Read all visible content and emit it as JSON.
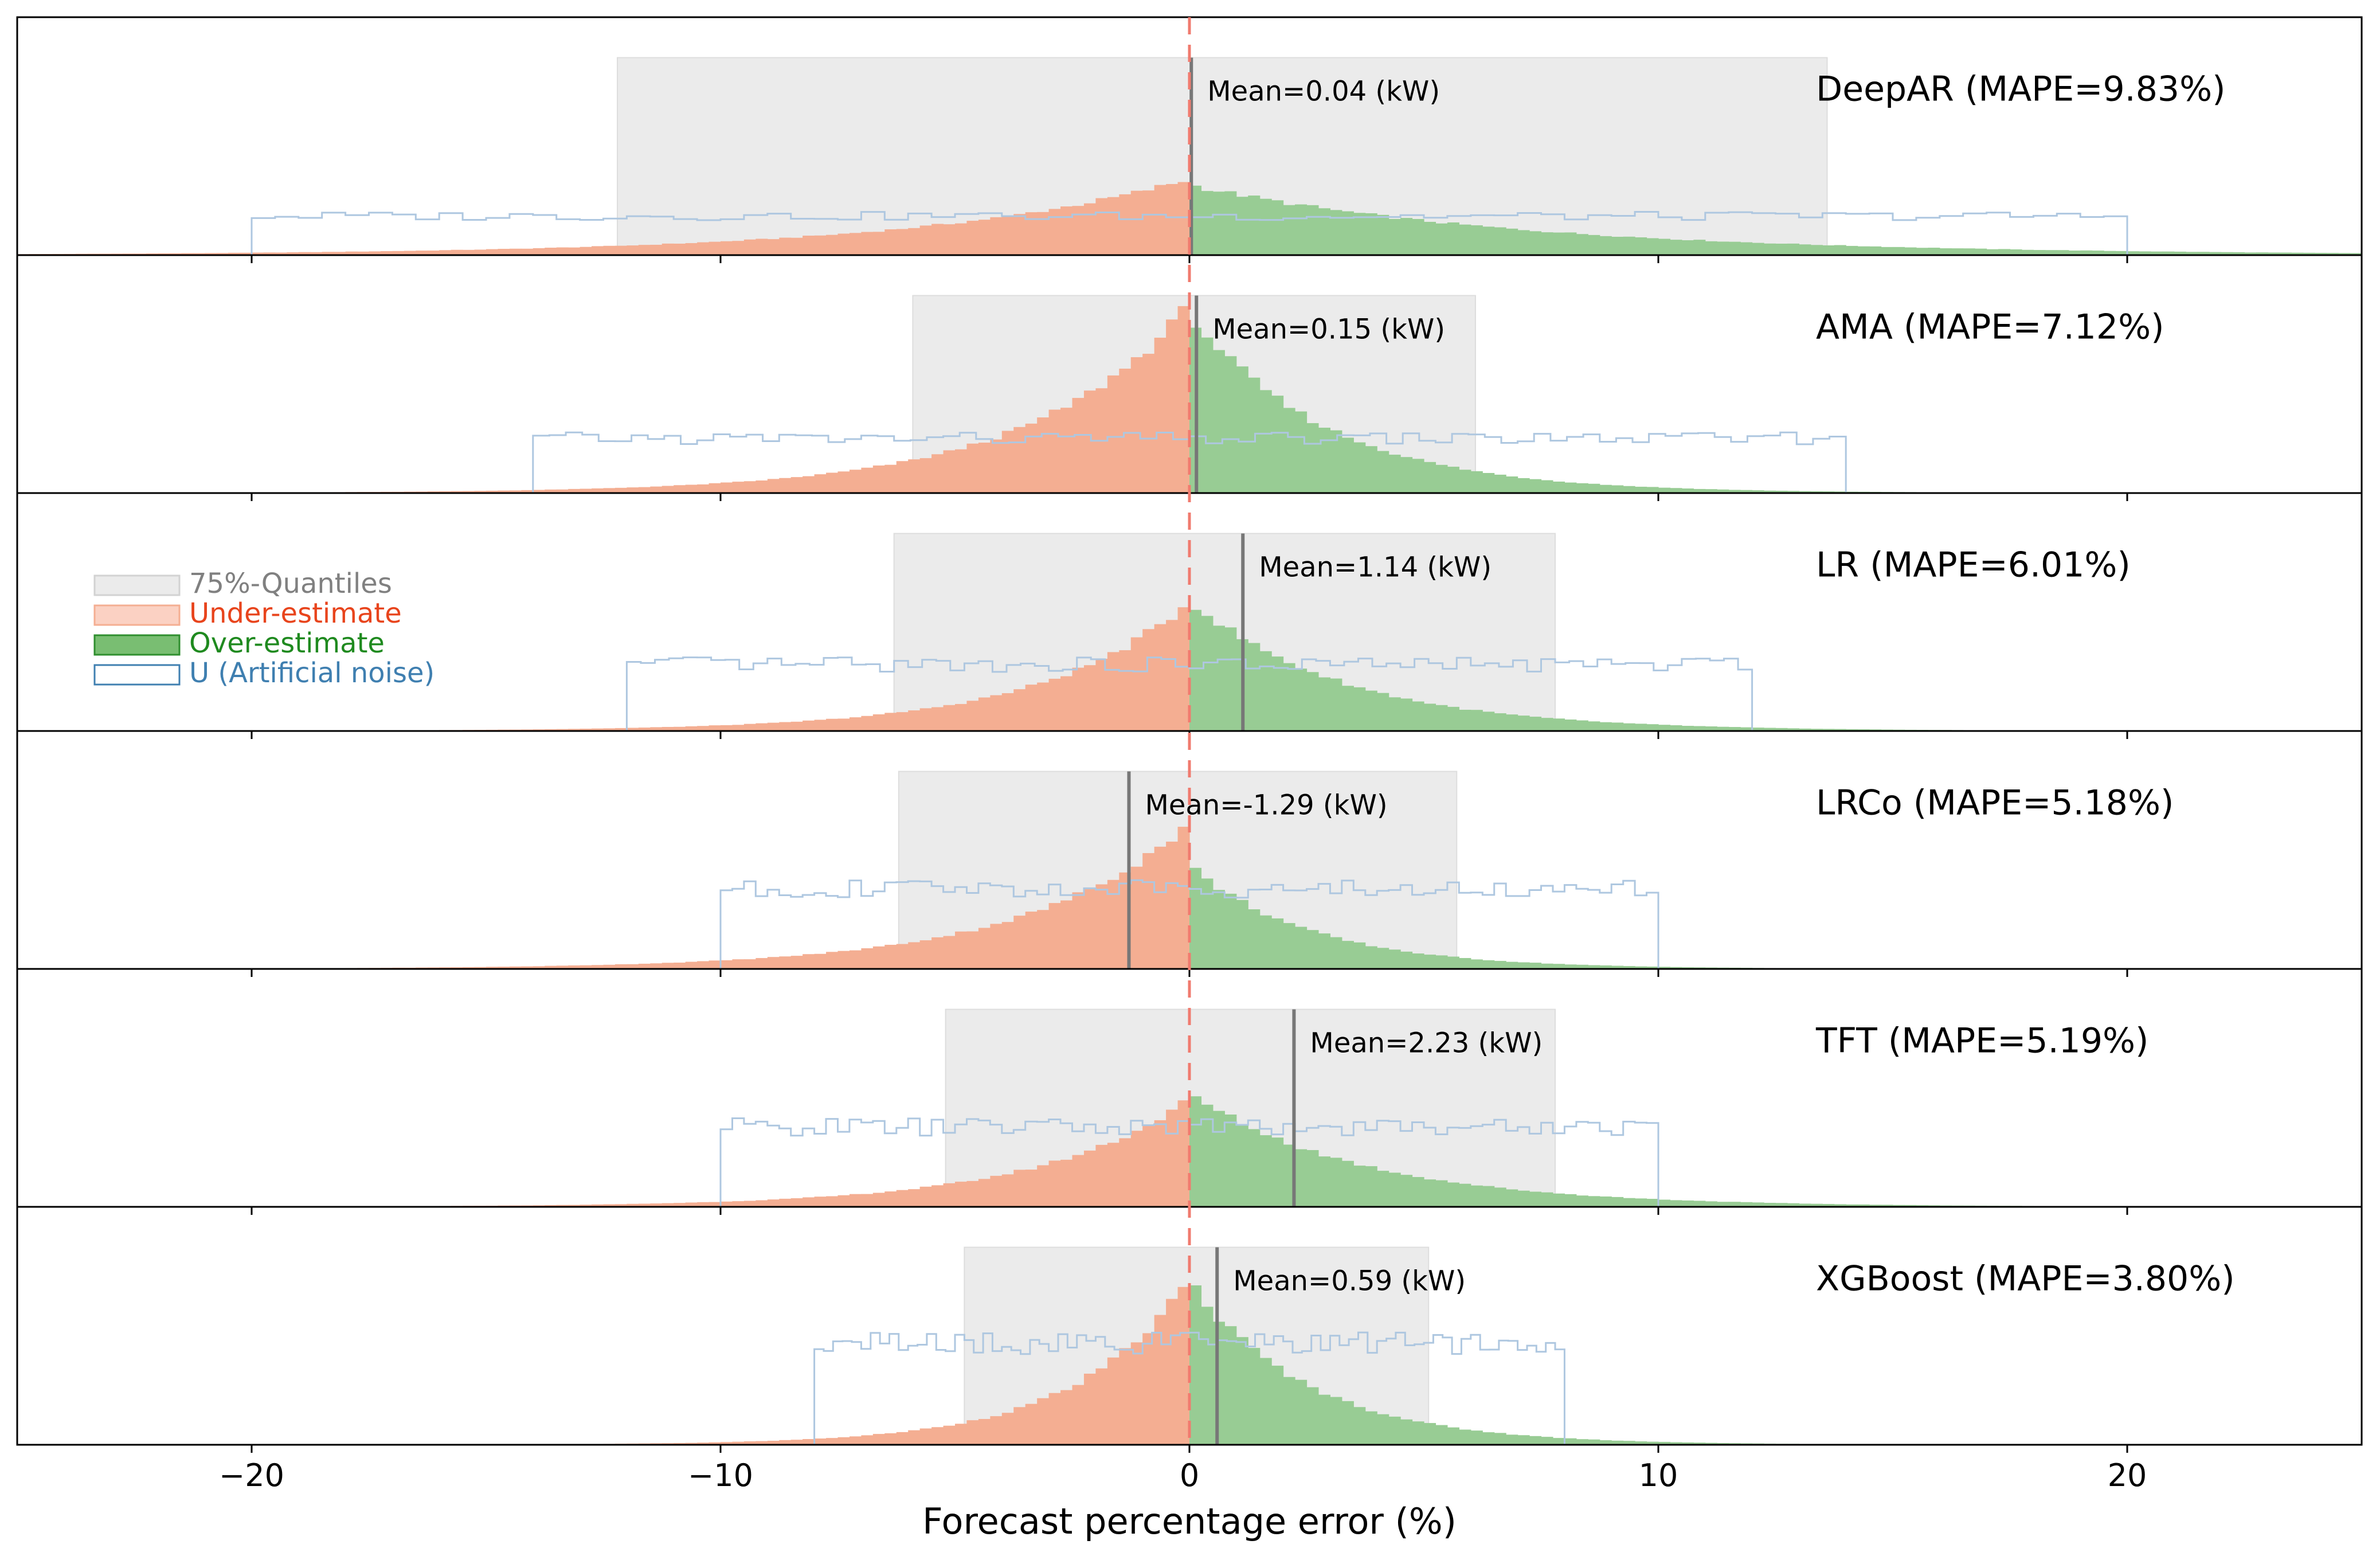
{
  "chart_data": {
    "type": "histogram",
    "xlabel": "Forecast percentage error (%)",
    "xlim": [
      -25,
      25
    ],
    "xticks": [
      -20,
      -10,
      0,
      10,
      20
    ],
    "xtick_labels": [
      "−20",
      "−10",
      "0",
      "10",
      "20"
    ],
    "zero_line": 0,
    "legend_position": "left, third panel",
    "legend": [
      {
        "label": "75%-Quantiles",
        "color": "#808080"
      },
      {
        "label": "Under-estimate",
        "color": "#e8441c"
      },
      {
        "label": "Over-estimate",
        "color": "#1f8a1f"
      },
      {
        "label": "U (Artificial noise)",
        "color": "#3f7fb0"
      }
    ],
    "colors": {
      "under": "#f4ae92",
      "over": "#98cc94",
      "quantile": "#ebebeb",
      "noise": "#aec7e0",
      "mean_line": "#777777",
      "zero_line": "#f07b6f"
    },
    "panels": [
      {
        "model": "DeepAR",
        "title": "DeepAR (MAPE=9.83%)",
        "mean": 0.04,
        "mean_label": "Mean=0.04 (kW)",
        "q_low": -12.2,
        "q_high": 13.6,
        "noise_low": -20,
        "noise_high": 20,
        "noise_level": 0.2,
        "left_scale": 5.8,
        "right_scale": 7.0,
        "peak_under": 0.39,
        "peak_over": 0.36
      },
      {
        "model": "AMA",
        "title": "AMA (MAPE=7.12%)",
        "mean": 0.15,
        "mean_label": "Mean=0.15 (kW)",
        "q_low": -5.9,
        "q_high": 6.1,
        "noise_low": -14,
        "noise_high": 14,
        "noise_level": 0.28,
        "left_scale": 3.4,
        "right_scale": 2.9,
        "peak_under": 0.96,
        "peak_over": 0.92
      },
      {
        "model": "LR",
        "title": "LR (MAPE=6.01%)",
        "mean": 1.14,
        "mean_label": "Mean=1.14 (kW)",
        "q_low": -6.3,
        "q_high": 7.8,
        "noise_low": -12,
        "noise_high": 12,
        "noise_level": 0.34,
        "left_scale": 3.2,
        "right_scale": 3.3,
        "peak_under": 0.66,
        "peak_over": 0.67
      },
      {
        "model": "LRCo",
        "title": "LRCo (MAPE=5.18%)",
        "mean": -1.29,
        "mean_label": "Mean=-1.29 (kW)",
        "q_low": -6.2,
        "q_high": 5.7,
        "noise_low": -10,
        "noise_high": 10,
        "noise_level": 0.41,
        "left_scale": 3.5,
        "right_scale": 2.6,
        "peak_under": 0.75,
        "peak_over": 0.53
      },
      {
        "model": "TFT",
        "title": "TFT (MAPE=5.19%)",
        "mean": 2.23,
        "mean_label": "Mean=2.23 (kW)",
        "q_low": -5.2,
        "q_high": 7.8,
        "noise_low": -10,
        "noise_high": 10,
        "noise_level": 0.41,
        "left_scale": 3.3,
        "right_scale": 3.7,
        "peak_under": 0.55,
        "peak_over": 0.58
      },
      {
        "model": "XGBoost",
        "title": "XGBoost (MAPE=3.80%)",
        "mean": 0.59,
        "mean_label": "Mean=0.59 (kW)",
        "q_low": -4.8,
        "q_high": 5.1,
        "noise_low": -8,
        "noise_high": 8,
        "noise_level": 0.52,
        "left_scale": 2.4,
        "right_scale": 2.5,
        "peak_under": 0.85,
        "peak_over": 0.84
      }
    ]
  }
}
